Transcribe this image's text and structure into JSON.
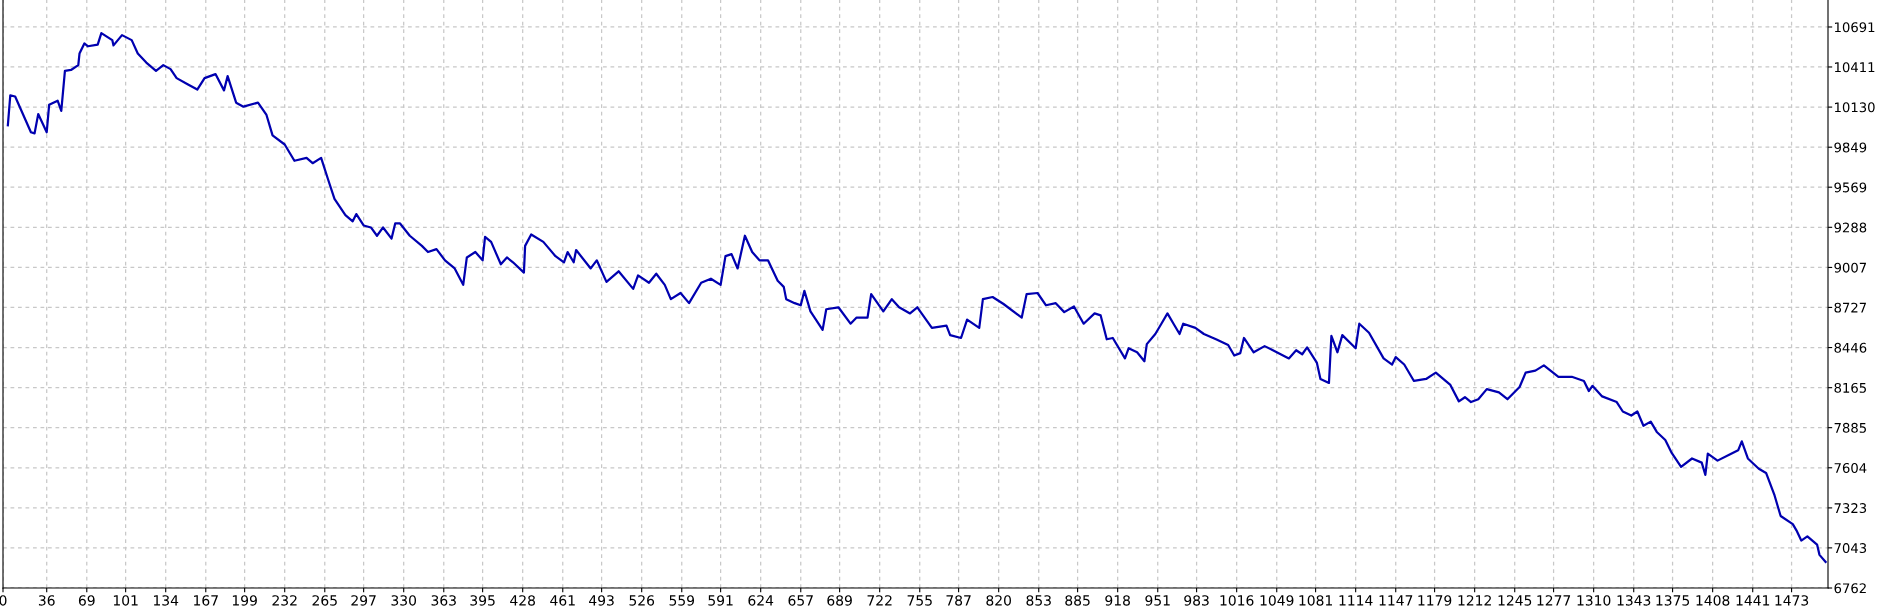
{
  "chart_data": {
    "type": "line",
    "grid": true,
    "line_style": "solid",
    "marker": "none",
    "xlim": [
      0,
      1503
    ],
    "ylim": [
      6762,
      10880
    ],
    "xticks": [
      0,
      36,
      69,
      101,
      134,
      167,
      199,
      232,
      265,
      297,
      330,
      363,
      395,
      428,
      461,
      493,
      526,
      559,
      591,
      624,
      657,
      689,
      722,
      755,
      787,
      820,
      853,
      885,
      918,
      951,
      983,
      1016,
      1049,
      1081,
      1114,
      1147,
      1179,
      1212,
      1245,
      1277,
      1310,
      1343,
      1375,
      1408,
      1441,
      1473
    ],
    "yticks": [
      6762,
      7043,
      7323,
      7604,
      7885,
      8165,
      8446,
      8727,
      9007,
      9288,
      9569,
      9849,
      10130,
      10411,
      10691
    ],
    "series": [
      {
        "color": "#0000b0",
        "x": [
          4,
          6,
          10,
          23,
          26,
          29,
          36,
          38,
          45,
          48,
          51,
          56,
          62,
          63,
          67,
          70,
          78,
          81,
          90,
          91,
          98,
          106,
          111,
          118,
          126,
          132,
          138,
          143,
          152,
          160,
          166,
          175,
          182,
          185,
          192,
          198,
          210,
          217,
          222,
          232,
          240,
          250,
          255,
          262,
          268,
          273,
          282,
          288,
          291,
          297,
          303,
          308,
          313,
          320,
          323,
          327,
          335,
          345,
          350,
          357,
          364,
          372,
          379,
          382,
          389,
          395,
          397,
          402,
          410,
          415,
          420,
          429,
          430,
          435,
          445,
          455,
          462,
          465,
          470,
          472,
          484,
          489,
          497,
          507,
          519,
          523,
          532,
          538,
          545,
          550,
          558,
          565,
          575,
          583,
          591,
          595,
          600,
          605,
          611,
          617,
          623,
          630,
          638,
          643,
          645,
          652,
          657,
          660,
          665,
          675,
          678,
          688,
          698,
          703,
          712,
          715,
          725,
          732,
          738,
          747,
          753,
          765,
          777,
          780,
          789,
          794,
          804,
          807,
          815,
          824,
          839,
          843,
          852,
          859,
          867,
          874,
          882,
          890,
          899,
          904,
          909,
          914,
          924,
          927,
          934,
          940,
          942,
          949,
          954,
          959,
          964,
          969,
          972,
          982,
          989,
          999,
          1009,
          1014,
          1019,
          1022,
          1030,
          1039,
          1049,
          1059,
          1065,
          1070,
          1074,
          1082,
          1085,
          1092,
          1094,
          1099,
          1103,
          1114,
          1117,
          1125,
          1137,
          1144,
          1147,
          1154,
          1162,
          1172,
          1180,
          1192,
          1199,
          1204,
          1209,
          1215,
          1222,
          1232,
          1239,
          1249,
          1254,
          1262,
          1269,
          1281,
          1292,
          1302,
          1306,
          1309,
          1317,
          1329,
          1334,
          1341,
          1346,
          1351,
          1357,
          1362,
          1369,
          1374,
          1382,
          1391,
          1399,
          1402,
          1404,
          1412,
          1422,
          1429,
          1432,
          1437,
          1446,
          1452,
          1459,
          1464,
          1474,
          1477,
          1481,
          1486,
          1494,
          1496,
          1501
        ],
        "values": [
          10003,
          10212,
          10204,
          9954,
          9946,
          10081,
          9954,
          10146,
          10175,
          10103,
          10384,
          10390,
          10424,
          10505,
          10576,
          10556,
          10568,
          10648,
          10599,
          10562,
          10634,
          10599,
          10505,
          10442,
          10384,
          10424,
          10396,
          10333,
          10290,
          10253,
          10333,
          10361,
          10247,
          10347,
          10161,
          10133,
          10161,
          10075,
          9932,
          9868,
          9754,
          9774,
          9737,
          9774,
          9616,
          9487,
          9373,
          9330,
          9381,
          9301,
          9287,
          9229,
          9287,
          9209,
          9315,
          9315,
          9229,
          9158,
          9115,
          9135,
          9057,
          9000,
          8885,
          9077,
          9115,
          9057,
          9221,
          9186,
          9029,
          9077,
          9043,
          8971,
          9158,
          9238,
          9186,
          9086,
          9043,
          9115,
          9043,
          9129,
          9000,
          9057,
          8906,
          8980,
          8857,
          8951,
          8900,
          8963,
          8885,
          8785,
          8828,
          8757,
          8900,
          8928,
          8885,
          9086,
          9100,
          9000,
          9229,
          9115,
          9057,
          9057,
          8914,
          8871,
          8785,
          8757,
          8742,
          8843,
          8699,
          8570,
          8714,
          8728,
          8613,
          8656,
          8656,
          8820,
          8699,
          8785,
          8728,
          8685,
          8728,
          8584,
          8599,
          8533,
          8513,
          8642,
          8584,
          8785,
          8800,
          8751,
          8656,
          8820,
          8828,
          8742,
          8757,
          8694,
          8734,
          8613,
          8685,
          8671,
          8504,
          8513,
          8370,
          8441,
          8413,
          8350,
          8470,
          8541,
          8613,
          8685,
          8613,
          8541,
          8613,
          8584,
          8541,
          8504,
          8464,
          8390,
          8407,
          8513,
          8413,
          8456,
          8413,
          8370,
          8427,
          8399,
          8447,
          8341,
          8226,
          8198,
          8527,
          8413,
          8533,
          8441,
          8613,
          8550,
          8370,
          8327,
          8379,
          8327,
          8212,
          8226,
          8270,
          8184,
          8069,
          8098,
          8064,
          8084,
          8155,
          8132,
          8084,
          8170,
          8270,
          8284,
          8321,
          8241,
          8241,
          8212,
          8141,
          8178,
          8104,
          8064,
          7998,
          7970,
          7998,
          7898,
          7927,
          7855,
          7798,
          7712,
          7611,
          7669,
          7640,
          7554,
          7703,
          7654,
          7697,
          7726,
          7789,
          7669,
          7597,
          7568,
          7410,
          7266,
          7209,
          7166,
          7094,
          7123,
          7066,
          6994,
          6945
        ]
      }
    ]
  }
}
